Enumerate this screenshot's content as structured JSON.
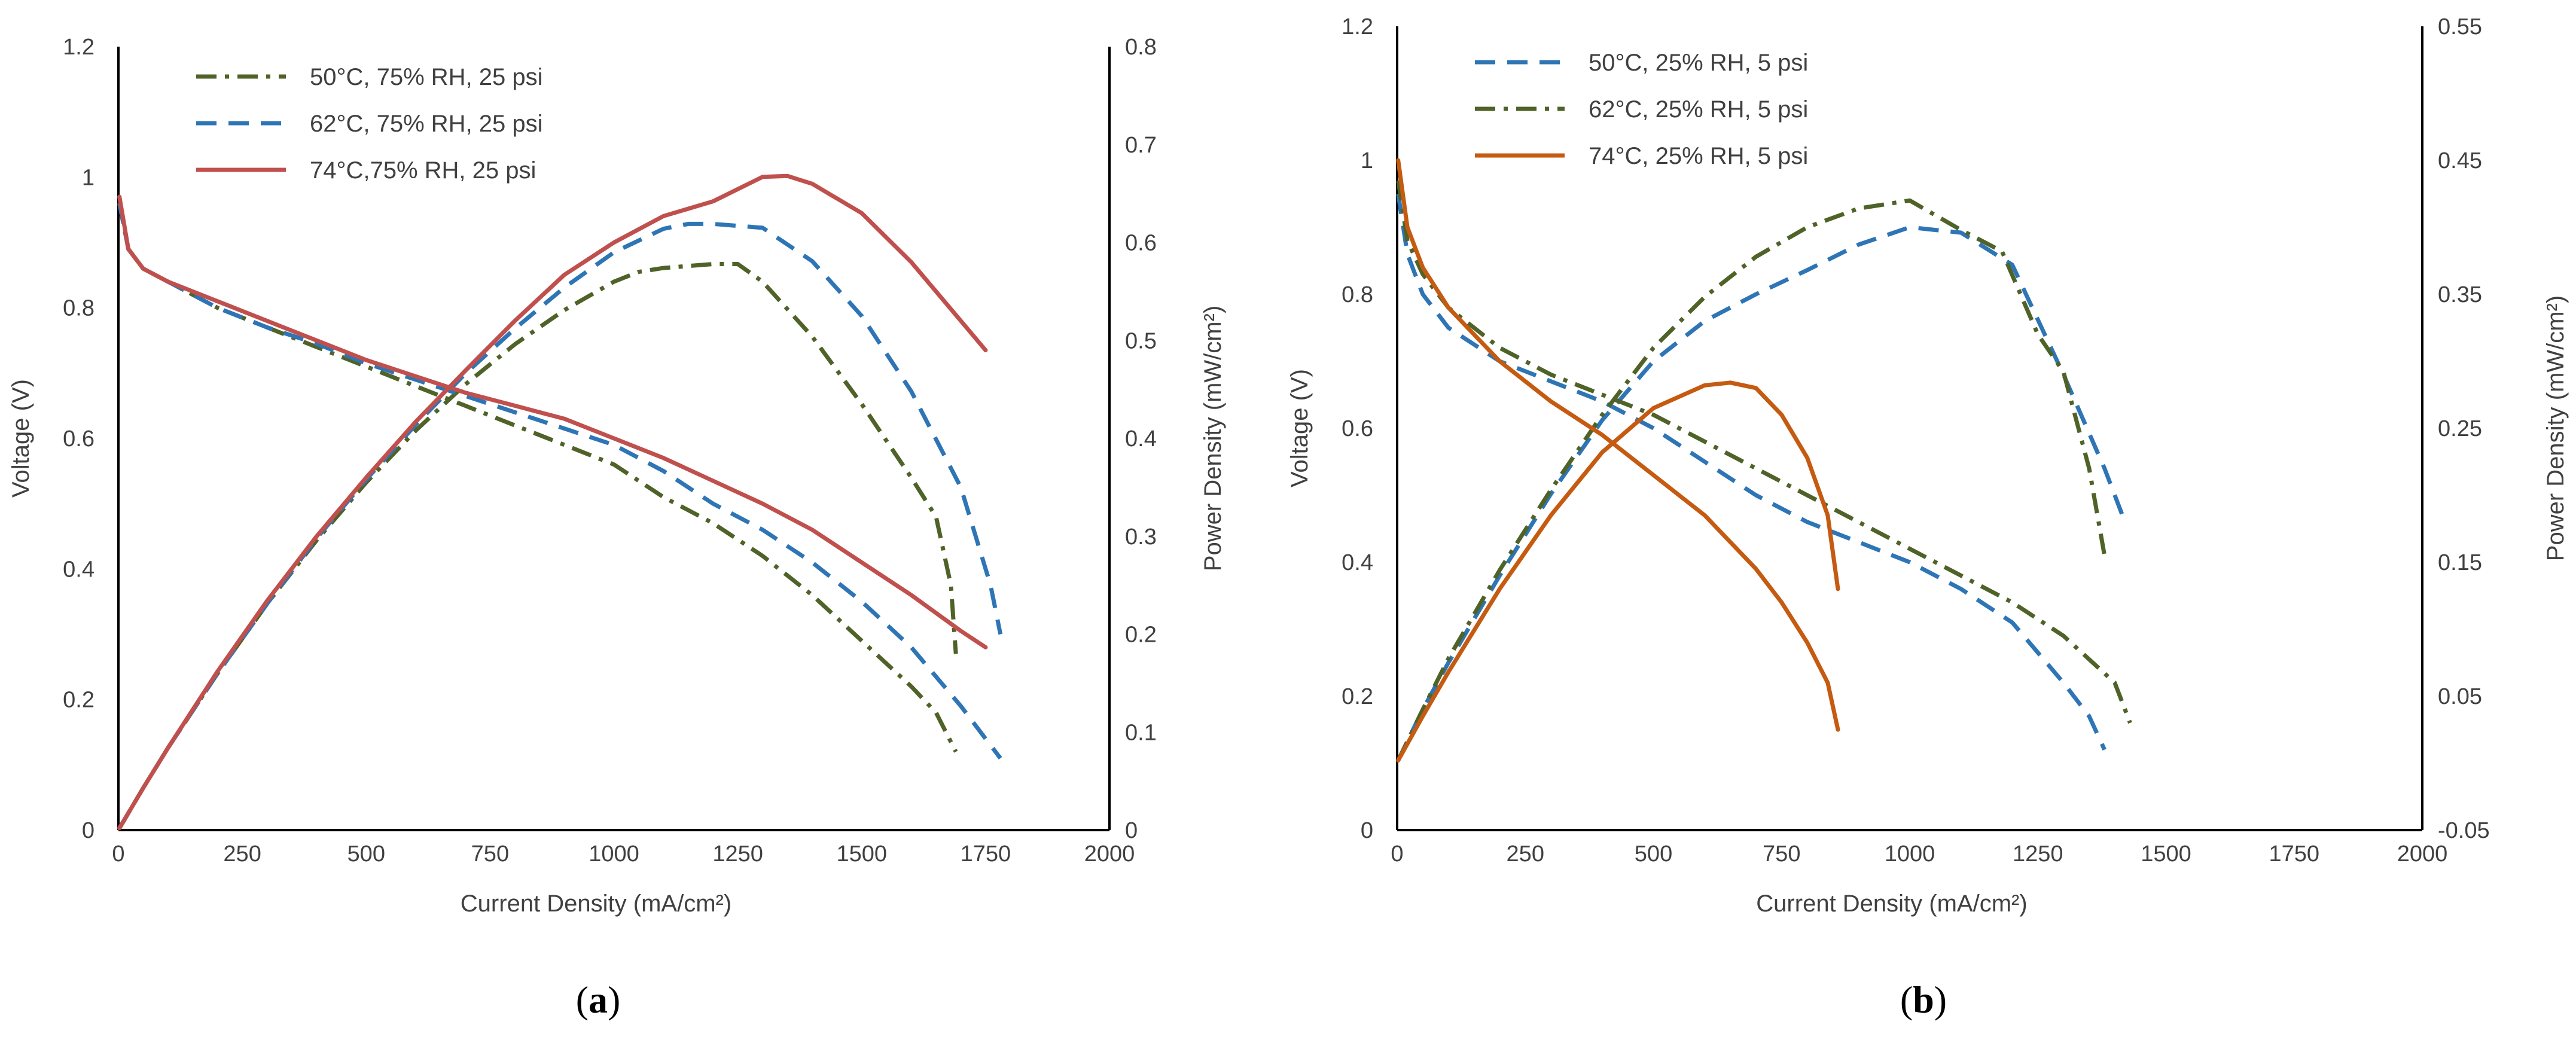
{
  "chart_data": [
    {
      "type": "line",
      "panel_label": "a",
      "xlabel": "Current Density (mA/cm²)",
      "ylabel_left": "Voltage (V)",
      "ylabel_right": "Power Density (mW/cm²)",
      "xlim": [
        0,
        2000
      ],
      "ylim_left": [
        0,
        1.2
      ],
      "ylim_right": [
        0,
        0.8
      ],
      "x_ticks": [
        "0",
        "250",
        "500",
        "750",
        "1000",
        "1250",
        "1500",
        "1750",
        "2000"
      ],
      "y_left_ticks": [
        "0",
        "0.2",
        "0.4",
        "0.6",
        "0.8",
        "1",
        "1.2"
      ],
      "y_right_ticks": [
        "0",
        "0.1",
        "0.2",
        "0.3",
        "0.4",
        "0.5",
        "0.6",
        "0.7",
        "0.8"
      ],
      "legend_position": "top-left",
      "series": [
        {
          "name": "50°C, 75% RH, 25 psi",
          "color": "#4f6228",
          "dash": "dashdot",
          "voltage": [
            [
              2,
              0.96
            ],
            [
              20,
              0.89
            ],
            [
              50,
              0.86
            ],
            [
              100,
              0.84
            ],
            [
              200,
              0.8
            ],
            [
              300,
              0.77
            ],
            [
              400,
              0.74
            ],
            [
              500,
              0.71
            ],
            [
              600,
              0.68
            ],
            [
              700,
              0.65
            ],
            [
              800,
              0.62
            ],
            [
              900,
              0.59
            ],
            [
              1000,
              0.56
            ],
            [
              1100,
              0.51
            ],
            [
              1200,
              0.47
            ],
            [
              1300,
              0.42
            ],
            [
              1400,
              0.36
            ],
            [
              1500,
              0.29
            ],
            [
              1600,
              0.22
            ],
            [
              1650,
              0.18
            ],
            [
              1690,
              0.12
            ]
          ],
          "power": [
            [
              2,
              0.002
            ],
            [
              50,
              0.043
            ],
            [
              100,
              0.084
            ],
            [
              200,
              0.16
            ],
            [
              300,
              0.231
            ],
            [
              400,
              0.296
            ],
            [
              500,
              0.355
            ],
            [
              600,
              0.408
            ],
            [
              700,
              0.455
            ],
            [
              800,
              0.496
            ],
            [
              900,
              0.531
            ],
            [
              1000,
              0.56
            ],
            [
              1050,
              0.57
            ],
            [
              1100,
              0.574
            ],
            [
              1200,
              0.578
            ],
            [
              1250,
              0.578
            ],
            [
              1300,
              0.56
            ],
            [
              1400,
              0.504
            ],
            [
              1500,
              0.435
            ],
            [
              1600,
              0.36
            ],
            [
              1650,
              0.32
            ],
            [
              1680,
              0.25
            ],
            [
              1690,
              0.18
            ]
          ]
        },
        {
          "name": "62°C, 75% RH, 25 psi",
          "color": "#2e75b6",
          "dash": "dash",
          "voltage": [
            [
              2,
              0.96
            ],
            [
              20,
              0.89
            ],
            [
              50,
              0.86
            ],
            [
              100,
              0.84
            ],
            [
              200,
              0.8
            ],
            [
              300,
              0.77
            ],
            [
              400,
              0.745
            ],
            [
              500,
              0.715
            ],
            [
              600,
              0.69
            ],
            [
              700,
              0.665
            ],
            [
              800,
              0.64
            ],
            [
              900,
              0.615
            ],
            [
              1000,
              0.59
            ],
            [
              1100,
              0.55
            ],
            [
              1200,
              0.5
            ],
            [
              1300,
              0.46
            ],
            [
              1400,
              0.41
            ],
            [
              1500,
              0.35
            ],
            [
              1600,
              0.28
            ],
            [
              1700,
              0.19
            ],
            [
              1780,
              0.11
            ]
          ],
          "power": [
            [
              2,
              0.002
            ],
            [
              50,
              0.043
            ],
            [
              100,
              0.084
            ],
            [
              200,
              0.16
            ],
            [
              300,
              0.231
            ],
            [
              400,
              0.298
            ],
            [
              500,
              0.358
            ],
            [
              600,
              0.414
            ],
            [
              700,
              0.466
            ],
            [
              800,
              0.512
            ],
            [
              900,
              0.554
            ],
            [
              1000,
              0.59
            ],
            [
              1100,
              0.614
            ],
            [
              1150,
              0.619
            ],
            [
              1200,
              0.619
            ],
            [
              1300,
              0.615
            ],
            [
              1400,
              0.581
            ],
            [
              1500,
              0.525
            ],
            [
              1600,
              0.448
            ],
            [
              1700,
              0.35
            ],
            [
              1760,
              0.25
            ],
            [
              1780,
              0.2
            ]
          ]
        },
        {
          "name": "74°C,75% RH, 25 psi",
          "color": "#c0504d",
          "dash": "solid",
          "voltage": [
            [
              2,
              0.97
            ],
            [
              20,
              0.89
            ],
            [
              50,
              0.86
            ],
            [
              100,
              0.84
            ],
            [
              200,
              0.81
            ],
            [
              300,
              0.78
            ],
            [
              400,
              0.75
            ],
            [
              500,
              0.72
            ],
            [
              600,
              0.695
            ],
            [
              700,
              0.67
            ],
            [
              800,
              0.65
            ],
            [
              900,
              0.63
            ],
            [
              1000,
              0.6
            ],
            [
              1100,
              0.57
            ],
            [
              1200,
              0.535
            ],
            [
              1300,
              0.5
            ],
            [
              1400,
              0.46
            ],
            [
              1500,
              0.41
            ],
            [
              1600,
              0.36
            ],
            [
              1700,
              0.305
            ],
            [
              1750,
              0.28
            ]
          ],
          "power": [
            [
              2,
              0.002
            ],
            [
              50,
              0.043
            ],
            [
              100,
              0.084
            ],
            [
              200,
              0.162
            ],
            [
              300,
              0.234
            ],
            [
              400,
              0.3
            ],
            [
              500,
              0.36
            ],
            [
              600,
              0.417
            ],
            [
              700,
              0.469
            ],
            [
              800,
              0.52
            ],
            [
              900,
              0.567
            ],
            [
              1000,
              0.6
            ],
            [
              1100,
              0.627
            ],
            [
              1200,
              0.642
            ],
            [
              1300,
              0.667
            ],
            [
              1350,
              0.668
            ],
            [
              1400,
              0.66
            ],
            [
              1500,
              0.63
            ],
            [
              1600,
              0.58
            ],
            [
              1700,
              0.52
            ],
            [
              1750,
              0.49
            ]
          ]
        }
      ]
    },
    {
      "type": "line",
      "panel_label": "b",
      "xlabel": "Current Density (mA/cm²)",
      "ylabel_left": "Voltage (V)",
      "ylabel_right": "Power Density (mW/cm²)",
      "xlim": [
        0,
        2000
      ],
      "ylim_left": [
        0,
        1.2
      ],
      "ylim_right": [
        -0.05,
        0.55
      ],
      "x_ticks": [
        "0",
        "250",
        "500",
        "750",
        "1000",
        "1250",
        "1500",
        "1750",
        "2000"
      ],
      "y_left_ticks": [
        "0",
        "0.2",
        "0.4",
        "0.6",
        "0.8",
        "1",
        "1.2"
      ],
      "y_right_ticks": [
        "-0.05",
        "0.05",
        "0.15",
        "0.25",
        "0.35",
        "0.45",
        "0.55"
      ],
      "legend_position": "top-left",
      "series": [
        {
          "name": "50°C, 25% RH, 5 psi",
          "color": "#2e75b6",
          "dash": "dash",
          "voltage": [
            [
              2,
              0.95
            ],
            [
              20,
              0.86
            ],
            [
              50,
              0.8
            ],
            [
              100,
              0.75
            ],
            [
              200,
              0.7
            ],
            [
              300,
              0.67
            ],
            [
              400,
              0.64
            ],
            [
              500,
              0.6
            ],
            [
              600,
              0.55
            ],
            [
              700,
              0.5
            ],
            [
              800,
              0.46
            ],
            [
              900,
              0.43
            ],
            [
              1000,
              0.4
            ],
            [
              1100,
              0.36
            ],
            [
              1200,
              0.31
            ],
            [
              1300,
              0.22
            ],
            [
              1350,
              0.17
            ],
            [
              1380,
              0.12
            ]
          ],
          "power": [
            [
              2,
              0.002
            ],
            [
              50,
              0.04
            ],
            [
              100,
              0.075
            ],
            [
              200,
              0.14
            ],
            [
              300,
              0.201
            ],
            [
              400,
              0.256
            ],
            [
              500,
              0.3
            ],
            [
              600,
              0.33
            ],
            [
              700,
              0.35
            ],
            [
              800,
              0.368
            ],
            [
              900,
              0.387
            ],
            [
              1000,
              0.4
            ],
            [
              1100,
              0.396
            ],
            [
              1200,
              0.372
            ],
            [
              1300,
              0.29
            ],
            [
              1380,
              0.22
            ],
            [
              1420,
              0.18
            ]
          ]
        },
        {
          "name": "62°C, 25% RH, 5 psi",
          "color": "#4f6228",
          "dash": "dashdot",
          "voltage": [
            [
              2,
              0.97
            ],
            [
              20,
              0.88
            ],
            [
              50,
              0.83
            ],
            [
              100,
              0.78
            ],
            [
              200,
              0.72
            ],
            [
              300,
              0.68
            ],
            [
              400,
              0.65
            ],
            [
              500,
              0.62
            ],
            [
              600,
              0.58
            ],
            [
              700,
              0.54
            ],
            [
              800,
              0.5
            ],
            [
              900,
              0.46
            ],
            [
              1000,
              0.42
            ],
            [
              1100,
              0.38
            ],
            [
              1200,
              0.34
            ],
            [
              1300,
              0.29
            ],
            [
              1400,
              0.22
            ],
            [
              1430,
              0.16
            ]
          ],
          "power": [
            [
              2,
              0.002
            ],
            [
              50,
              0.04
            ],
            [
              100,
              0.078
            ],
            [
              200,
              0.144
            ],
            [
              300,
              0.204
            ],
            [
              400,
              0.26
            ],
            [
              500,
              0.31
            ],
            [
              600,
              0.348
            ],
            [
              700,
              0.378
            ],
            [
              800,
              0.4
            ],
            [
              900,
              0.414
            ],
            [
              1000,
              0.42
            ],
            [
              1100,
              0.398
            ],
            [
              1180,
              0.382
            ],
            [
              1250,
              0.32
            ],
            [
              1300,
              0.292
            ],
            [
              1350,
              0.22
            ],
            [
              1380,
              0.155
            ]
          ]
        },
        {
          "name": "74°C, 25% RH, 5 psi",
          "color": "#c55a11",
          "dash": "solid",
          "voltage": [
            [
              2,
              1.0
            ],
            [
              20,
              0.9
            ],
            [
              50,
              0.84
            ],
            [
              100,
              0.78
            ],
            [
              200,
              0.7
            ],
            [
              300,
              0.64
            ],
            [
              400,
              0.59
            ],
            [
              500,
              0.53
            ],
            [
              600,
              0.47
            ],
            [
              700,
              0.39
            ],
            [
              750,
              0.34
            ],
            [
              800,
              0.28
            ],
            [
              840,
              0.22
            ],
            [
              860,
              0.15
            ]
          ],
          "power": [
            [
              2,
              0.002
            ],
            [
              50,
              0.035
            ],
            [
              100,
              0.068
            ],
            [
              200,
              0.13
            ],
            [
              300,
              0.185
            ],
            [
              400,
              0.232
            ],
            [
              500,
              0.265
            ],
            [
              600,
              0.282
            ],
            [
              650,
              0.284
            ],
            [
              700,
              0.28
            ],
            [
              750,
              0.26
            ],
            [
              800,
              0.228
            ],
            [
              840,
              0.185
            ],
            [
              860,
              0.13
            ]
          ]
        }
      ]
    }
  ]
}
